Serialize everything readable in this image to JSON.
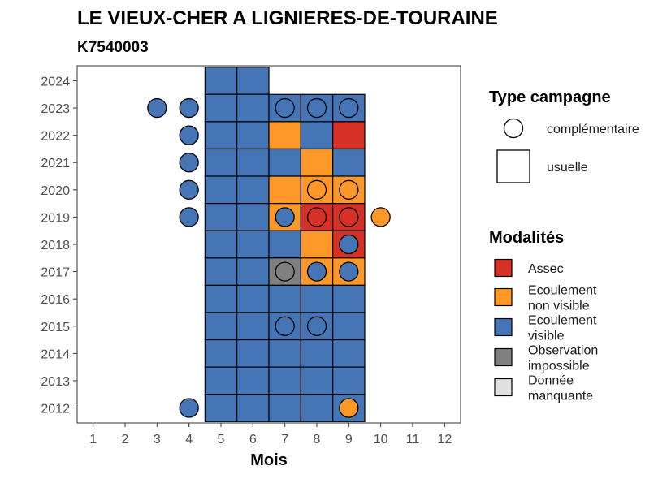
{
  "chart_data": {
    "type": "heatmap",
    "title": "LE VIEUX-CHER A LIGNIERES-DE-TOURAINE",
    "subtitle": "K7540003",
    "xlabel": "Mois",
    "ylabel": "",
    "x_ticks": [
      1,
      2,
      3,
      4,
      5,
      6,
      7,
      8,
      9,
      10,
      11,
      12
    ],
    "y_ticks": [
      2012,
      2013,
      2014,
      2015,
      2016,
      2017,
      2018,
      2019,
      2020,
      2021,
      2022,
      2023,
      2024
    ],
    "xlim": [
      0.5,
      12.5
    ],
    "ylim": [
      2011.45,
      2024.55
    ],
    "grid": false,
    "modalites": [
      {
        "key": "assec",
        "label": "Assec",
        "color": "#d73027"
      },
      {
        "key": "ecoulement_non_visible",
        "label": "Ecoulement non visible",
        "color": "#fe9929"
      },
      {
        "key": "ecoulement_visible",
        "label": "Ecoulement visible",
        "color": "#4575b4"
      },
      {
        "key": "observation_impossible",
        "label": "Observation impossible",
        "color": "#808080"
      },
      {
        "key": "donnee_manquante",
        "label": "Donnée manquante",
        "color": "#e0e0e0"
      }
    ],
    "legend_type_title": "Type campagne",
    "legend_modalites_title": "Modalités",
    "type_campagne": [
      {
        "key": "complementaire",
        "label": "complémentaire",
        "shape": "circle"
      },
      {
        "key": "usuelle",
        "label": "usuelle",
        "shape": "square"
      }
    ],
    "usuelle": [
      {
        "year": 2024,
        "month": 5,
        "m": "ecoulement_visible"
      },
      {
        "year": 2024,
        "month": 6,
        "m": "ecoulement_visible"
      },
      {
        "year": 2023,
        "month": 5,
        "m": "ecoulement_visible"
      },
      {
        "year": 2023,
        "month": 6,
        "m": "ecoulement_visible"
      },
      {
        "year": 2023,
        "month": 7,
        "m": "ecoulement_visible"
      },
      {
        "year": 2023,
        "month": 8,
        "m": "ecoulement_visible"
      },
      {
        "year": 2023,
        "month": 9,
        "m": "ecoulement_visible"
      },
      {
        "year": 2022,
        "month": 5,
        "m": "ecoulement_visible"
      },
      {
        "year": 2022,
        "month": 6,
        "m": "ecoulement_visible"
      },
      {
        "year": 2022,
        "month": 7,
        "m": "ecoulement_non_visible"
      },
      {
        "year": 2022,
        "month": 8,
        "m": "ecoulement_visible"
      },
      {
        "year": 2022,
        "month": 9,
        "m": "assec"
      },
      {
        "year": 2021,
        "month": 5,
        "m": "ecoulement_visible"
      },
      {
        "year": 2021,
        "month": 6,
        "m": "ecoulement_visible"
      },
      {
        "year": 2021,
        "month": 7,
        "m": "ecoulement_visible"
      },
      {
        "year": 2021,
        "month": 8,
        "m": "ecoulement_non_visible"
      },
      {
        "year": 2021,
        "month": 9,
        "m": "ecoulement_visible"
      },
      {
        "year": 2020,
        "month": 5,
        "m": "ecoulement_visible"
      },
      {
        "year": 2020,
        "month": 6,
        "m": "ecoulement_visible"
      },
      {
        "year": 2020,
        "month": 7,
        "m": "ecoulement_non_visible"
      },
      {
        "year": 2020,
        "month": 8,
        "m": "ecoulement_non_visible"
      },
      {
        "year": 2020,
        "month": 9,
        "m": "ecoulement_non_visible"
      },
      {
        "year": 2019,
        "month": 5,
        "m": "ecoulement_visible"
      },
      {
        "year": 2019,
        "month": 6,
        "m": "ecoulement_visible"
      },
      {
        "year": 2019,
        "month": 7,
        "m": "ecoulement_non_visible"
      },
      {
        "year": 2019,
        "month": 8,
        "m": "assec"
      },
      {
        "year": 2019,
        "month": 9,
        "m": "assec"
      },
      {
        "year": 2018,
        "month": 5,
        "m": "ecoulement_visible"
      },
      {
        "year": 2018,
        "month": 6,
        "m": "ecoulement_visible"
      },
      {
        "year": 2018,
        "month": 7,
        "m": "ecoulement_visible"
      },
      {
        "year": 2018,
        "month": 8,
        "m": "ecoulement_non_visible"
      },
      {
        "year": 2018,
        "month": 9,
        "m": "assec"
      },
      {
        "year": 2017,
        "month": 5,
        "m": "ecoulement_visible"
      },
      {
        "year": 2017,
        "month": 6,
        "m": "ecoulement_visible"
      },
      {
        "year": 2017,
        "month": 7,
        "m": "observation_impossible"
      },
      {
        "year": 2017,
        "month": 8,
        "m": "ecoulement_non_visible"
      },
      {
        "year": 2017,
        "month": 9,
        "m": "ecoulement_non_visible"
      },
      {
        "year": 2016,
        "month": 5,
        "m": "ecoulement_visible"
      },
      {
        "year": 2016,
        "month": 6,
        "m": "ecoulement_visible"
      },
      {
        "year": 2016,
        "month": 7,
        "m": "ecoulement_visible"
      },
      {
        "year": 2016,
        "month": 8,
        "m": "ecoulement_visible"
      },
      {
        "year": 2016,
        "month": 9,
        "m": "ecoulement_visible"
      },
      {
        "year": 2015,
        "month": 5,
        "m": "ecoulement_visible"
      },
      {
        "year": 2015,
        "month": 6,
        "m": "ecoulement_visible"
      },
      {
        "year": 2015,
        "month": 7,
        "m": "ecoulement_visible"
      },
      {
        "year": 2015,
        "month": 8,
        "m": "ecoulement_visible"
      },
      {
        "year": 2015,
        "month": 9,
        "m": "ecoulement_visible"
      },
      {
        "year": 2014,
        "month": 5,
        "m": "ecoulement_visible"
      },
      {
        "year": 2014,
        "month": 6,
        "m": "ecoulement_visible"
      },
      {
        "year": 2014,
        "month": 7,
        "m": "ecoulement_visible"
      },
      {
        "year": 2014,
        "month": 8,
        "m": "ecoulement_visible"
      },
      {
        "year": 2014,
        "month": 9,
        "m": "ecoulement_visible"
      },
      {
        "year": 2013,
        "month": 5,
        "m": "ecoulement_visible"
      },
      {
        "year": 2013,
        "month": 6,
        "m": "ecoulement_visible"
      },
      {
        "year": 2013,
        "month": 7,
        "m": "ecoulement_visible"
      },
      {
        "year": 2013,
        "month": 8,
        "m": "ecoulement_visible"
      },
      {
        "year": 2013,
        "month": 9,
        "m": "ecoulement_visible"
      },
      {
        "year": 2012,
        "month": 5,
        "m": "ecoulement_visible"
      },
      {
        "year": 2012,
        "month": 6,
        "m": "ecoulement_visible"
      },
      {
        "year": 2012,
        "month": 7,
        "m": "ecoulement_visible"
      },
      {
        "year": 2012,
        "month": 8,
        "m": "ecoulement_visible"
      },
      {
        "year": 2012,
        "month": 9,
        "m": "ecoulement_visible"
      }
    ],
    "complementaire": [
      {
        "year": 2023,
        "month": 3,
        "m": "ecoulement_visible"
      },
      {
        "year": 2023,
        "month": 4,
        "m": "ecoulement_visible"
      },
      {
        "year": 2023,
        "month": 7,
        "m": "ecoulement_visible"
      },
      {
        "year": 2023,
        "month": 8,
        "m": "ecoulement_visible"
      },
      {
        "year": 2023,
        "month": 9,
        "m": "ecoulement_visible"
      },
      {
        "year": 2022,
        "month": 4,
        "m": "ecoulement_visible"
      },
      {
        "year": 2021,
        "month": 4,
        "m": "ecoulement_visible"
      },
      {
        "year": 2020,
        "month": 4,
        "m": "ecoulement_visible"
      },
      {
        "year": 2020,
        "month": 8,
        "m": "ecoulement_non_visible"
      },
      {
        "year": 2020,
        "month": 9,
        "m": "ecoulement_non_visible"
      },
      {
        "year": 2019,
        "month": 4,
        "m": "ecoulement_visible"
      },
      {
        "year": 2019,
        "month": 7,
        "m": "ecoulement_visible"
      },
      {
        "year": 2019,
        "month": 8,
        "m": "assec"
      },
      {
        "year": 2019,
        "month": 9,
        "m": "assec"
      },
      {
        "year": 2019,
        "month": 10,
        "m": "ecoulement_non_visible"
      },
      {
        "year": 2018,
        "month": 9,
        "m": "ecoulement_visible"
      },
      {
        "year": 2017,
        "month": 7,
        "m": "observation_impossible"
      },
      {
        "year": 2017,
        "month": 8,
        "m": "ecoulement_visible"
      },
      {
        "year": 2017,
        "month": 9,
        "m": "ecoulement_visible"
      },
      {
        "year": 2015,
        "month": 7,
        "m": "ecoulement_visible"
      },
      {
        "year": 2015,
        "month": 8,
        "m": "ecoulement_visible"
      },
      {
        "year": 2012,
        "month": 4,
        "m": "ecoulement_visible"
      },
      {
        "year": 2012,
        "month": 9,
        "m": "ecoulement_non_visible"
      }
    ]
  }
}
